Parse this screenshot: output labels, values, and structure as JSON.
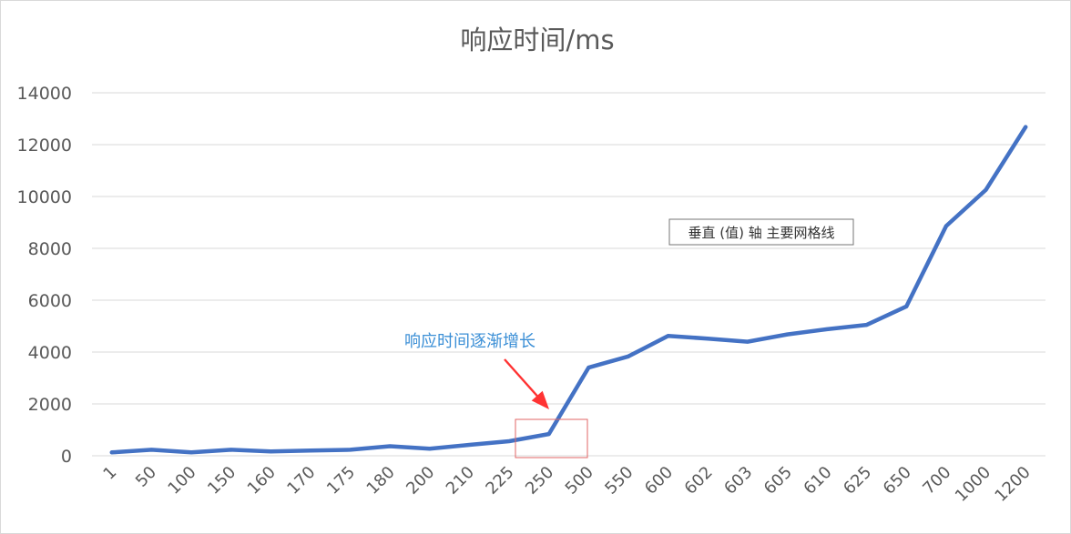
{
  "chart_data": {
    "type": "line",
    "title": "响应时间/ms",
    "xlabel": "",
    "ylabel": "",
    "categories": [
      "1",
      "50",
      "100",
      "150",
      "160",
      "170",
      "175",
      "180",
      "200",
      "210",
      "225",
      "250",
      "500",
      "550",
      "600",
      "602",
      "603",
      "605",
      "610",
      "625",
      "650",
      "700",
      "1000",
      "1200"
    ],
    "series": [
      {
        "values": [
          130,
          230,
          130,
          230,
          170,
          200,
          230,
          370,
          270,
          420,
          560,
          840,
          3400,
          3830,
          4620,
          4520,
          4400,
          4680,
          4880,
          5050,
          5760,
          8860,
          10260,
          12680
        ],
        "color": "#4472c4"
      }
    ],
    "ylim": [
      0,
      14000
    ],
    "yticks": [
      "0",
      "2000",
      "4000",
      "6000",
      "8000",
      "10000",
      "12000",
      "14000"
    ],
    "ytick_values": [
      0,
      2000,
      4000,
      6000,
      8000,
      10000,
      12000,
      14000
    ],
    "grid": true,
    "legend": "none",
    "annotation": {
      "text": "响应时间逐渐增长",
      "color": "#3b8fd6",
      "arrow_color": "#ff3333",
      "highlight_box_color": "#e06666"
    },
    "tooltip": {
      "text": "垂直 (值) 轴 主要网格线"
    }
  }
}
